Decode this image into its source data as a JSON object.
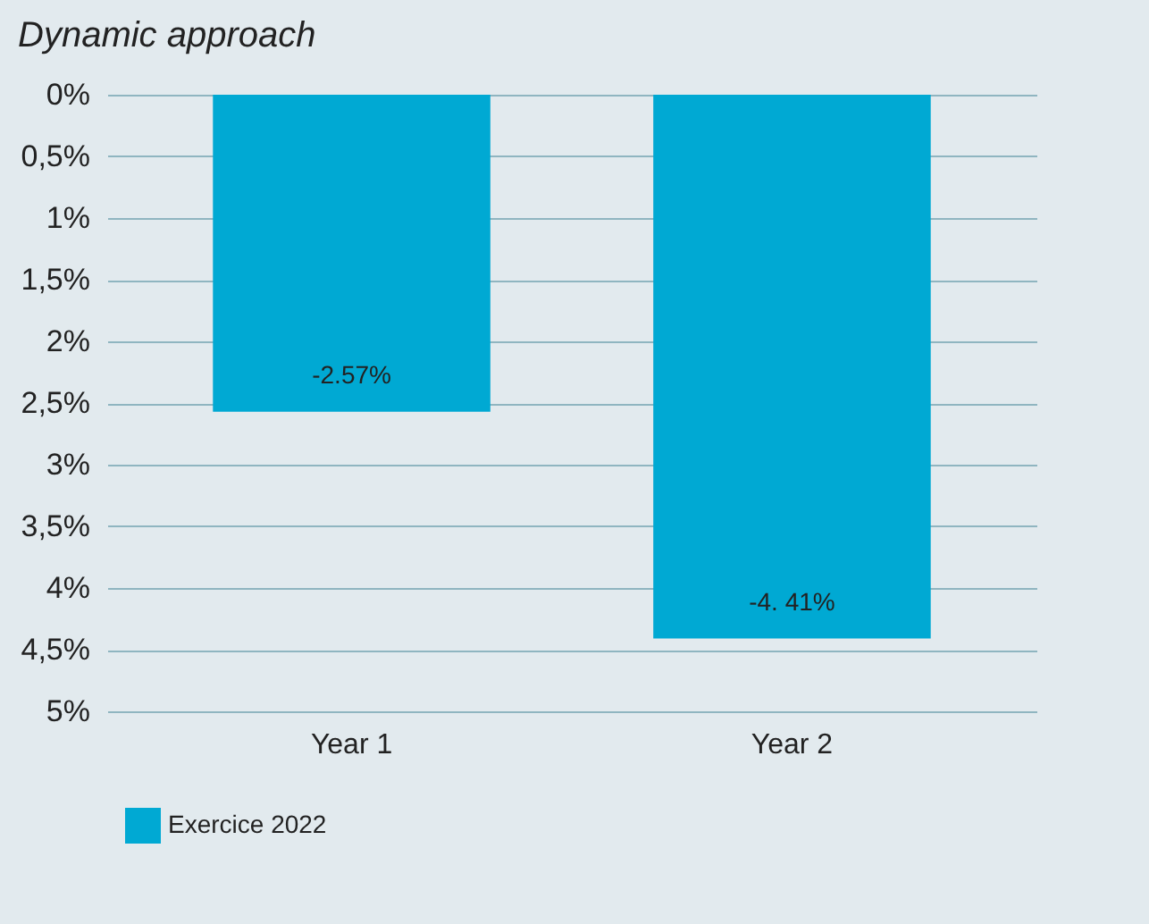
{
  "chart_data": {
    "type": "bar",
    "title": "Dynamic approach",
    "categories": [
      "Year 1",
      "Year 2"
    ],
    "series": [
      {
        "name": "Exercice 2022",
        "color": "#00a9d3",
        "values": [
          -2.57,
          -4.41
        ],
        "value_labels": [
          "-2.57%",
          "-4. 41%"
        ]
      }
    ],
    "ylim": [
      -5,
      0
    ],
    "yticks": [
      {
        "value": 0,
        "label": "0%"
      },
      {
        "value": -0.5,
        "label": "0,5%"
      },
      {
        "value": -1,
        "label": "1%"
      },
      {
        "value": -1.5,
        "label": "1,5%"
      },
      {
        "value": -2,
        "label": "2%"
      },
      {
        "value": -2.5,
        "label": "2,5%"
      },
      {
        "value": -3,
        "label": "3%"
      },
      {
        "value": -3.5,
        "label": "3,5%"
      },
      {
        "value": -4,
        "label": "4%"
      },
      {
        "value": -4.5,
        "label": "4,5%"
      },
      {
        "value": -5,
        "label": "5%"
      }
    ],
    "grid": "y",
    "legend": "bottom"
  }
}
